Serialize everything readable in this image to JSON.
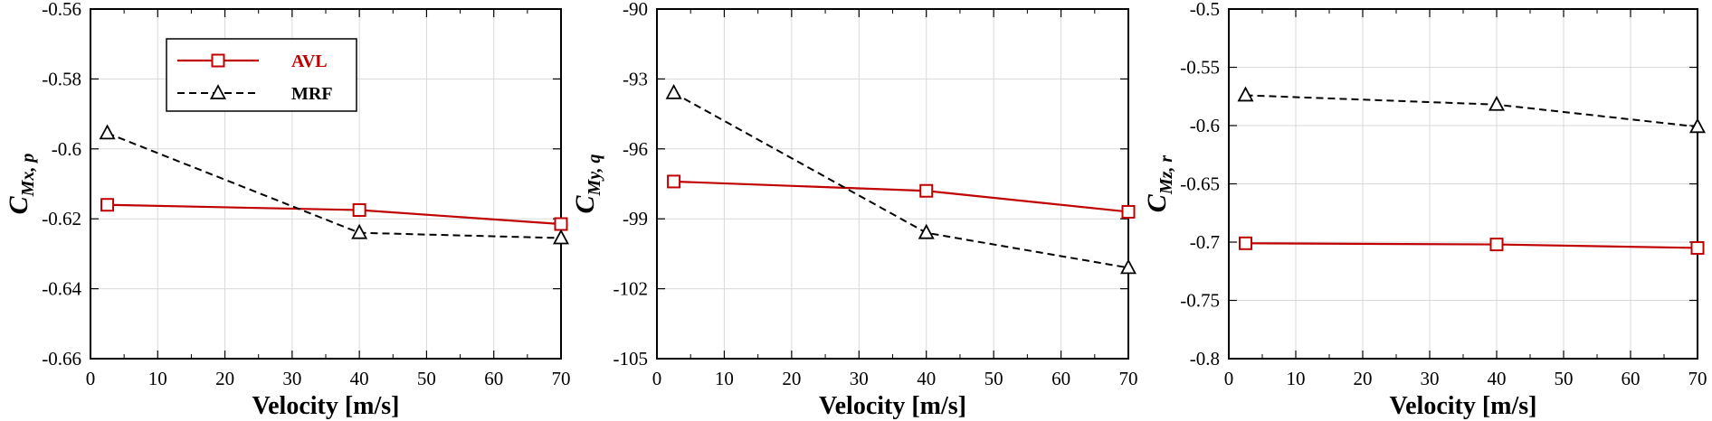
{
  "colors": {
    "avl": "#c00000",
    "mrf": "#000000",
    "grid": "#d9d9d9"
  },
  "legend": {
    "avl_label": "AVL",
    "mrf_label": "MRF"
  },
  "chart_data": [
    {
      "type": "line",
      "xlabel": "Velocity [m/s]",
      "ylabel_main": "C",
      "ylabel_sub": "Mx, p",
      "xlim": [
        0,
        70
      ],
      "ylim": [
        -0.66,
        -0.56
      ],
      "xticks": [
        0,
        10,
        20,
        30,
        40,
        50,
        60,
        70
      ],
      "xtick_labels": [
        "0",
        "10",
        "20",
        "30",
        "40",
        "50",
        "60",
        "70"
      ],
      "yticks": [
        -0.66,
        -0.64,
        -0.62,
        -0.6,
        -0.58,
        -0.56
      ],
      "ytick_labels": [
        "-0.66",
        "-0.64",
        "-0.62",
        "-0.6",
        "-0.58",
        "-0.56"
      ],
      "grid": true,
      "series": [
        {
          "name": "AVL",
          "x": [
            2.5,
            40,
            70
          ],
          "y": [
            -0.616,
            -0.6175,
            -0.6215
          ]
        },
        {
          "name": "MRF",
          "x": [
            2.5,
            40,
            70
          ],
          "y": [
            -0.5955,
            -0.624,
            -0.6255
          ]
        }
      ]
    },
    {
      "type": "line",
      "xlabel": "Velocity [m/s]",
      "ylabel_main": "C",
      "ylabel_sub": "My, q",
      "xlim": [
        0,
        70
      ],
      "ylim": [
        -105,
        -90
      ],
      "xticks": [
        0,
        10,
        20,
        30,
        40,
        50,
        60,
        70
      ],
      "xtick_labels": [
        "0",
        "10",
        "20",
        "30",
        "40",
        "50",
        "60",
        "70"
      ],
      "yticks": [
        -105,
        -102,
        -99,
        -96,
        -93,
        -90
      ],
      "ytick_labels": [
        "-105",
        "-102",
        "-99",
        "-96",
        "-93",
        "-90"
      ],
      "grid": true,
      "series": [
        {
          "name": "AVL",
          "x": [
            2.5,
            40,
            70
          ],
          "y": [
            -97.4,
            -97.8,
            -98.7
          ]
        },
        {
          "name": "MRF",
          "x": [
            2.5,
            40,
            70
          ],
          "y": [
            -93.6,
            -99.6,
            -101.1
          ]
        }
      ]
    },
    {
      "type": "line",
      "xlabel": "Velocity [m/s]",
      "ylabel_main": "C",
      "ylabel_sub": "Mz, r",
      "xlim": [
        0,
        70
      ],
      "ylim": [
        -0.8,
        -0.5
      ],
      "xticks": [
        0,
        10,
        20,
        30,
        40,
        50,
        60,
        70
      ],
      "xtick_labels": [
        "0",
        "10",
        "20",
        "30",
        "40",
        "50",
        "60",
        "70"
      ],
      "yticks": [
        -0.8,
        -0.75,
        -0.7,
        -0.65,
        -0.6,
        -0.55,
        -0.5
      ],
      "ytick_labels": [
        "-0.8",
        "-0.75",
        "-0.7",
        "-0.65",
        "-0.6",
        "-0.55",
        "-0.5"
      ],
      "grid": true,
      "series": [
        {
          "name": "AVL",
          "x": [
            2.5,
            40,
            70
          ],
          "y": [
            -0.701,
            -0.702,
            -0.705
          ]
        },
        {
          "name": "MRF",
          "x": [
            2.5,
            40,
            70
          ],
          "y": [
            -0.574,
            -0.582,
            -0.601
          ]
        }
      ]
    }
  ]
}
